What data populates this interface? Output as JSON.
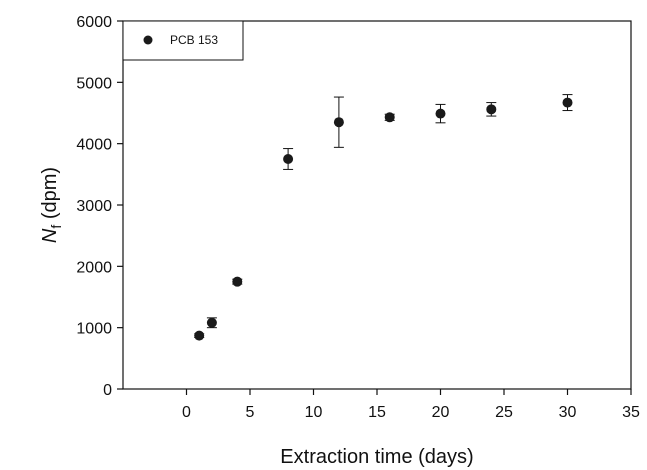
{
  "chart_data": {
    "type": "scatter",
    "title": "",
    "xlabel": "Extraction time (days)",
    "ylabel": {
      "symbol": "N",
      "subscript": "f",
      "unit": " (dpm)"
    },
    "xlim": [
      -5,
      35
    ],
    "ylim": [
      0,
      6000
    ],
    "x_ticks": [
      0,
      5,
      10,
      15,
      20,
      25,
      30,
      35
    ],
    "y_ticks": [
      0,
      1000,
      2000,
      3000,
      4000,
      5000,
      6000
    ],
    "grid": false,
    "legend_position": "top-left",
    "series": [
      {
        "name": "PCB 153",
        "marker": "filled-circle",
        "color": "#1a1a1a",
        "points": [
          {
            "x": 1,
            "y": 870,
            "err": 30
          },
          {
            "x": 2,
            "y": 1080,
            "err": 80
          },
          {
            "x": 4,
            "y": 1750,
            "err": 40
          },
          {
            "x": 8,
            "y": 3750,
            "err": 170
          },
          {
            "x": 12,
            "y": 4350,
            "err": 410
          },
          {
            "x": 16,
            "y": 4430,
            "err": 50
          },
          {
            "x": 20,
            "y": 4490,
            "err": 150
          },
          {
            "x": 24,
            "y": 4560,
            "err": 110
          },
          {
            "x": 30,
            "y": 4670,
            "err": 130
          }
        ]
      }
    ]
  }
}
